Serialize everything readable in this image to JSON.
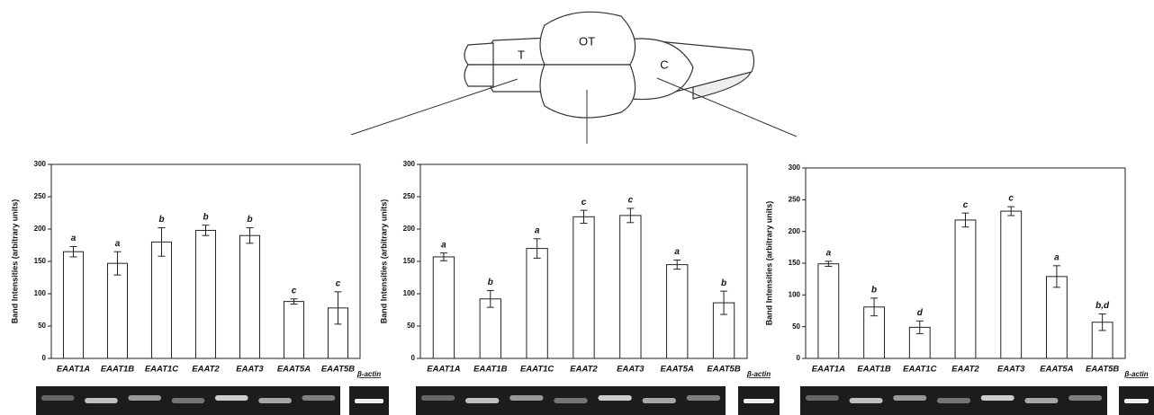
{
  "diagram": {
    "labels": [
      "T",
      "OT",
      "C"
    ]
  },
  "chart_data": [
    {
      "type": "bar",
      "ylabel": "Band Intensities (arbitrary units)",
      "categories": [
        "EAAT1A",
        "EAAT1B",
        "EAAT1C",
        "EAAT2",
        "EAAT3",
        "EAAT5A",
        "EAAT5B"
      ],
      "values": [
        165,
        147,
        180,
        198,
        190,
        88,
        78
      ],
      "errors": [
        8,
        18,
        22,
        8,
        12,
        4,
        25
      ],
      "annotations": [
        "a",
        "a",
        "b",
        "b",
        "b",
        "c",
        "c"
      ],
      "color": "#ffffff",
      "ylim": [
        0,
        300
      ],
      "yticks": [
        0,
        50,
        100,
        150,
        200,
        250,
        300
      ],
      "gel_reference": "β-actin"
    },
    {
      "type": "bar",
      "ylabel": "Band Intensities (arbitrary units)",
      "categories": [
        "EAAT1A",
        "EAAT1B",
        "EAAT1C",
        "EAAT2",
        "EAAT3",
        "EAAT5A",
        "EAAT5B"
      ],
      "values": [
        157,
        92,
        170,
        219,
        221,
        145,
        86
      ],
      "errors": [
        6,
        13,
        15,
        10,
        11,
        7,
        18
      ],
      "annotations": [
        "a",
        "b",
        "a",
        "c",
        "c",
        "a",
        "b"
      ],
      "color": "#ffffff",
      "ylim": [
        0,
        300
      ],
      "yticks": [
        0,
        50,
        100,
        150,
        200,
        250,
        300
      ],
      "gel_reference": "β-actin"
    },
    {
      "type": "bar",
      "ylabel": "Band Intensities (arbitrary units)",
      "categories": [
        "EAAT1A",
        "EAAT1B",
        "EAAT1C",
        "EAAT2",
        "EAAT3",
        "EAAT5A",
        "EAAT5B"
      ],
      "values": [
        149,
        81,
        49,
        218,
        232,
        129,
        57
      ],
      "errors": [
        4,
        14,
        10,
        11,
        7,
        17,
        13
      ],
      "annotations": [
        "a",
        "b",
        "d",
        "c",
        "c",
        "a",
        "b,d"
      ],
      "color": "#ffffff",
      "ylim": [
        0,
        300
      ],
      "yticks": [
        0,
        50,
        100,
        150,
        200,
        250,
        300
      ],
      "gel_reference": "β-actin"
    }
  ]
}
